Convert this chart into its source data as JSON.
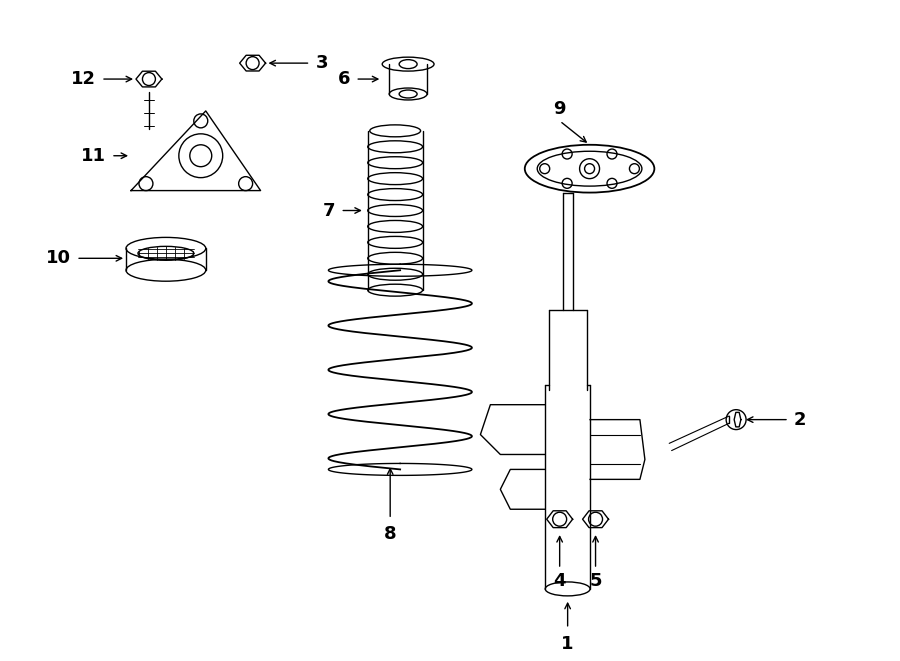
{
  "bg_color": "#ffffff",
  "line_color": "#000000",
  "lw": 1.0,
  "fig_width": 9.0,
  "fig_height": 6.61,
  "dpi": 100,
  "font_size": 13
}
